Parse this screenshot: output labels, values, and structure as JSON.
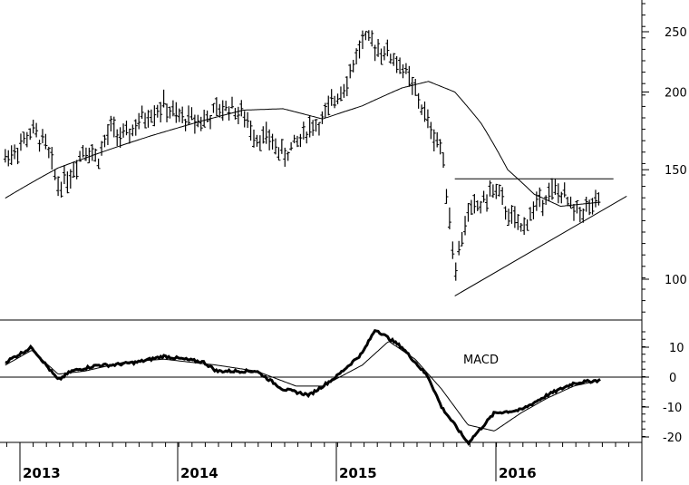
{
  "chart_data": [
    {
      "type": "ohlc",
      "title": "",
      "log_scale": true,
      "ylim": [
        88,
        270
      ],
      "y_ticks": [
        {
          "value": 250,
          "label": "250"
        },
        {
          "value": 200,
          "label": "200"
        },
        {
          "value": 150,
          "label": "150"
        },
        {
          "value": 100,
          "label": "100"
        }
      ],
      "x_year_labels": [
        "2013",
        "2014",
        "2015",
        "2016"
      ],
      "price_series_approx": [
        {
          "date": "2012-10",
          "close": 157
        },
        {
          "date": "2012-11",
          "close": 163
        },
        {
          "date": "2012-12",
          "close": 173
        },
        {
          "date": "2013-01",
          "close": 165
        },
        {
          "date": "2013-02",
          "close": 142
        },
        {
          "date": "2013-03",
          "close": 148
        },
        {
          "date": "2013-04",
          "close": 164
        },
        {
          "date": "2013-05",
          "close": 156
        },
        {
          "date": "2013-06",
          "close": 175
        },
        {
          "date": "2013-07",
          "close": 168
        },
        {
          "date": "2013-08",
          "close": 178
        },
        {
          "date": "2013-09",
          "close": 186
        },
        {
          "date": "2013-10",
          "close": 190
        },
        {
          "date": "2013-11",
          "close": 182
        },
        {
          "date": "2014-01",
          "close": 180
        },
        {
          "date": "2014-02",
          "close": 186
        },
        {
          "date": "2014-03",
          "close": 190
        },
        {
          "date": "2014-04",
          "close": 183
        },
        {
          "date": "2014-05",
          "close": 170
        },
        {
          "date": "2014-06",
          "close": 168
        },
        {
          "date": "2014-07",
          "close": 158
        },
        {
          "date": "2014-08",
          "close": 165
        },
        {
          "date": "2014-09",
          "close": 176
        },
        {
          "date": "2014-10",
          "close": 180
        },
        {
          "date": "2014-11",
          "close": 196
        },
        {
          "date": "2014-12",
          "close": 212
        },
        {
          "date": "2015-01",
          "close": 242
        },
        {
          "date": "2015-02",
          "close": 238
        },
        {
          "date": "2015-03",
          "close": 230
        },
        {
          "date": "2015-04",
          "close": 220
        },
        {
          "date": "2015-05",
          "close": 200
        },
        {
          "date": "2015-06",
          "close": 178
        },
        {
          "date": "2015-07",
          "close": 162
        },
        {
          "date": "2015-08",
          "close": 103
        },
        {
          "date": "2015-09",
          "close": 128
        },
        {
          "date": "2015-10",
          "close": 132
        },
        {
          "date": "2015-11",
          "close": 140
        },
        {
          "date": "2015-12",
          "close": 128
        },
        {
          "date": "2016-01",
          "close": 120
        },
        {
          "date": "2016-02",
          "close": 130
        },
        {
          "date": "2016-03",
          "close": 138
        },
        {
          "date": "2016-04",
          "close": 138
        },
        {
          "date": "2016-05",
          "close": 128
        },
        {
          "date": "2016-06",
          "close": 130
        },
        {
          "date": "2016-07",
          "close": 132
        }
      ],
      "moving_average_approx": [
        {
          "date": "2012-10",
          "value": 135
        },
        {
          "date": "2013-02",
          "value": 151
        },
        {
          "date": "2013-06",
          "value": 162
        },
        {
          "date": "2013-09",
          "value": 170
        },
        {
          "date": "2014-01",
          "value": 180
        },
        {
          "date": "2014-04",
          "value": 187
        },
        {
          "date": "2014-07",
          "value": 188
        },
        {
          "date": "2014-10",
          "value": 181
        },
        {
          "date": "2015-01",
          "value": 190
        },
        {
          "date": "2015-04",
          "value": 203
        },
        {
          "date": "2015-06",
          "value": 208
        },
        {
          "date": "2015-08",
          "value": 200
        },
        {
          "date": "2015-10",
          "value": 178
        },
        {
          "date": "2015-12",
          "value": 150
        },
        {
          "date": "2016-02",
          "value": 137
        },
        {
          "date": "2016-04",
          "value": 131
        },
        {
          "date": "2016-07",
          "value": 133
        }
      ],
      "trendlines": [
        {
          "type": "horizontal_resistance",
          "value": 145,
          "from": "2015-08",
          "to": "2016-08"
        },
        {
          "type": "rising_support",
          "from": {
            "date": "2015-08",
            "value": 94
          },
          "to": {
            "date": "2016-09",
            "value": 136
          }
        }
      ]
    },
    {
      "type": "line",
      "title": "",
      "label": "MACD",
      "ylim": [
        -24,
        15
      ],
      "y_ticks": [
        {
          "value": 10,
          "label": "10"
        },
        {
          "value": 0,
          "label": "0"
        },
        {
          "value": -10,
          "label": "-10"
        },
        {
          "value": -20,
          "label": "-20"
        }
      ],
      "zero_line": true,
      "series": [
        {
          "role": "macd",
          "points": [
            {
              "date": "2012-10",
              "value": 5
            },
            {
              "date": "2012-12",
              "value": 10
            },
            {
              "date": "2013-02",
              "value": -1
            },
            {
              "date": "2013-03",
              "value": 2
            },
            {
              "date": "2013-05",
              "value": 4
            },
            {
              "date": "2013-06",
              "value": 4
            },
            {
              "date": "2013-08",
              "value": 5
            },
            {
              "date": "2013-10",
              "value": 7
            },
            {
              "date": "2014-01",
              "value": 5
            },
            {
              "date": "2014-02",
              "value": 2
            },
            {
              "date": "2014-05",
              "value": 2
            },
            {
              "date": "2014-07",
              "value": -4
            },
            {
              "date": "2014-09",
              "value": -6
            },
            {
              "date": "2014-11",
              "value": 0
            },
            {
              "date": "2015-01",
              "value": 8
            },
            {
              "date": "2015-02",
              "value": 16
            },
            {
              "date": "2015-04",
              "value": 10
            },
            {
              "date": "2015-06",
              "value": 0
            },
            {
              "date": "2015-07",
              "value": -10
            },
            {
              "date": "2015-09",
              "value": -22
            },
            {
              "date": "2015-11",
              "value": -12
            },
            {
              "date": "2016-01",
              "value": -11
            },
            {
              "date": "2016-03",
              "value": -6
            },
            {
              "date": "2016-05",
              "value": -2
            },
            {
              "date": "2016-07",
              "value": -1
            }
          ]
        },
        {
          "role": "signal",
          "points": [
            {
              "date": "2012-10",
              "value": 4
            },
            {
              "date": "2012-12",
              "value": 9
            },
            {
              "date": "2013-02",
              "value": 1
            },
            {
              "date": "2013-04",
              "value": 2
            },
            {
              "date": "2013-07",
              "value": 5
            },
            {
              "date": "2013-10",
              "value": 6
            },
            {
              "date": "2014-02",
              "value": 4
            },
            {
              "date": "2014-05",
              "value": 2
            },
            {
              "date": "2014-08",
              "value": -3
            },
            {
              "date": "2014-10",
              "value": -3
            },
            {
              "date": "2015-01",
              "value": 4
            },
            {
              "date": "2015-03",
              "value": 12
            },
            {
              "date": "2015-05",
              "value": 6
            },
            {
              "date": "2015-07",
              "value": -4
            },
            {
              "date": "2015-09",
              "value": -16
            },
            {
              "date": "2015-11",
              "value": -18
            },
            {
              "date": "2016-01",
              "value": -12
            },
            {
              "date": "2016-03",
              "value": -7
            },
            {
              "date": "2016-05",
              "value": -3
            },
            {
              "date": "2016-07",
              "value": -1
            }
          ]
        }
      ]
    }
  ]
}
